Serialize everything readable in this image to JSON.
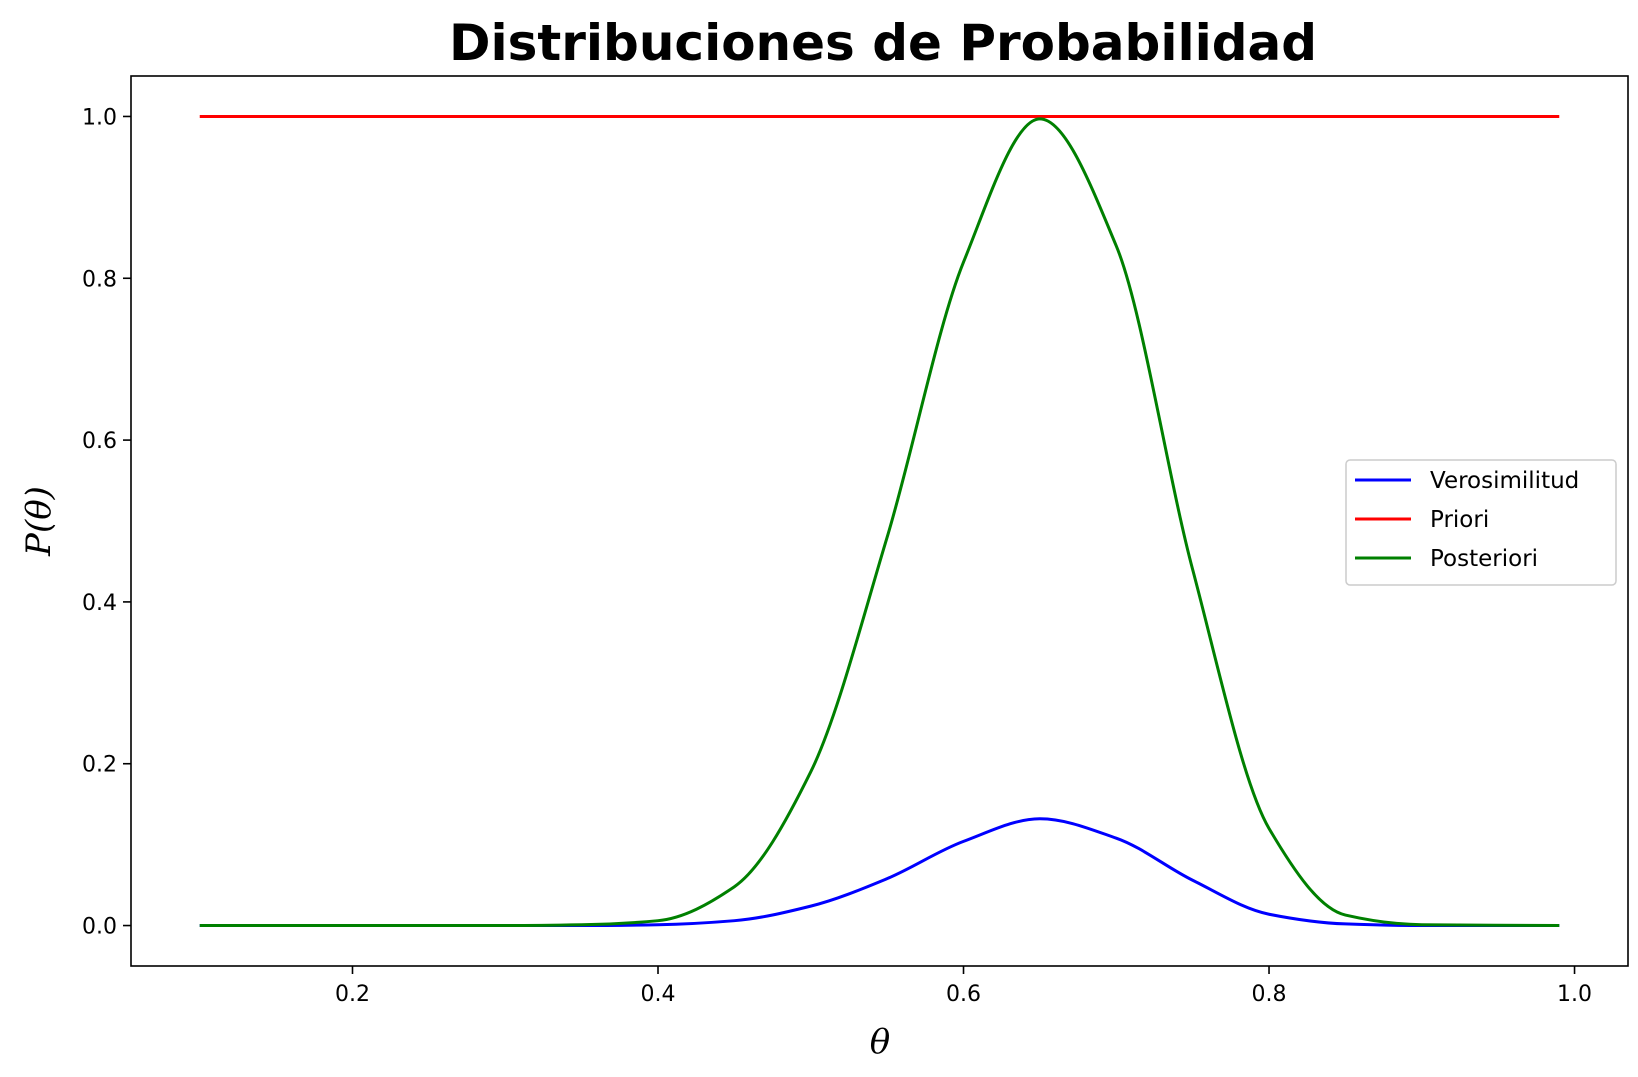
{
  "chart_data": {
    "type": "line",
    "title": "Distribuciones de Probabilidad",
    "xlabel": "θ",
    "ylabel": "P(θ)",
    "xlim": [
      0.055,
      1.035
    ],
    "ylim": [
      -0.05,
      1.05
    ],
    "x_ticks": [
      0.2,
      0.4,
      0.6,
      0.8,
      1.0
    ],
    "x_tick_labels": [
      "0.2",
      "0.4",
      "0.6",
      "0.8",
      "1.0"
    ],
    "y_ticks": [
      0.0,
      0.2,
      0.4,
      0.6,
      0.8,
      1.0
    ],
    "y_tick_labels": [
      "0.0",
      "0.2",
      "0.4",
      "0.6",
      "0.8",
      "1.0"
    ],
    "grid": false,
    "legend_position": "center-right",
    "x_range": [
      0.1,
      0.99
    ],
    "series": [
      {
        "name": "Verosimilitud",
        "color": "#0000ff",
        "points": [
          [
            0.1,
            0.0
          ],
          [
            0.3,
            0.0
          ],
          [
            0.35,
            0.0
          ],
          [
            0.4,
            0.001
          ],
          [
            0.45,
            0.006
          ],
          [
            0.5,
            0.024
          ],
          [
            0.55,
            0.058
          ],
          [
            0.6,
            0.104
          ],
          [
            0.65,
            0.132
          ],
          [
            0.7,
            0.108
          ],
          [
            0.75,
            0.056
          ],
          [
            0.8,
            0.014
          ],
          [
            0.85,
            0.002
          ],
          [
            0.9,
            0.0
          ],
          [
            0.99,
            0.0
          ]
        ]
      },
      {
        "name": "Priori",
        "color": "#ff0000",
        "points": [
          [
            0.1,
            1.0
          ],
          [
            0.99,
            1.0
          ]
        ]
      },
      {
        "name": "Posteriori",
        "color": "#008000",
        "points": [
          [
            0.1,
            0.0
          ],
          [
            0.3,
            0.0
          ],
          [
            0.35,
            0.001
          ],
          [
            0.4,
            0.006
          ],
          [
            0.45,
            0.048
          ],
          [
            0.5,
            0.19
          ],
          [
            0.55,
            0.48
          ],
          [
            0.6,
            0.82
          ],
          [
            0.65,
            0.997
          ],
          [
            0.7,
            0.84
          ],
          [
            0.75,
            0.44
          ],
          [
            0.8,
            0.12
          ],
          [
            0.85,
            0.013
          ],
          [
            0.9,
            0.001
          ],
          [
            0.99,
            0.0
          ]
        ]
      }
    ]
  }
}
